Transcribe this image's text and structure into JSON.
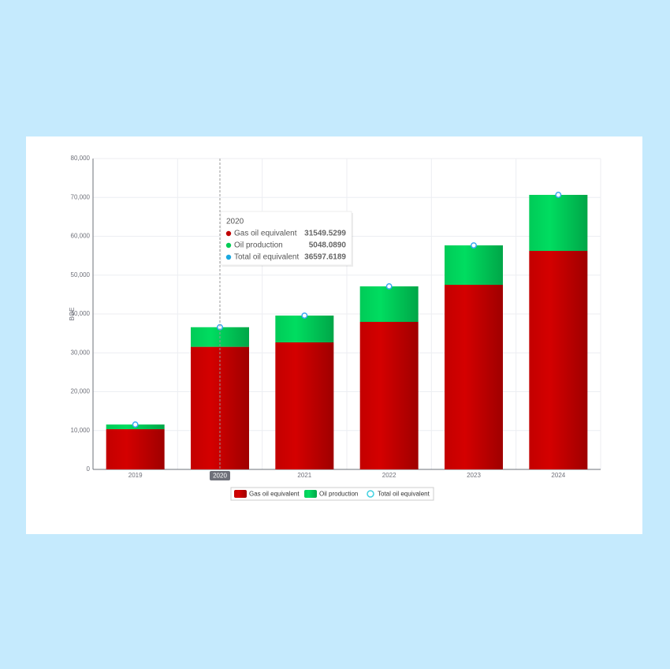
{
  "chart_data": {
    "type": "bar",
    "y_label": "BOE",
    "categories": [
      "2019",
      "2020",
      "2021",
      "2022",
      "2023",
      "2024"
    ],
    "series": [
      {
        "name": "Gas oil equivalent",
        "color": "#d40000",
        "values": [
          10350,
          31549.5299,
          32690,
          37970,
          47510,
          56240
        ]
      },
      {
        "name": "Oil production",
        "color": "#00dd60",
        "values": [
          1200,
          5048.089,
          6900,
          9140,
          10150,
          14420
        ]
      },
      {
        "name": "Total oil equivalent",
        "type": "scatter",
        "color": "#3aa8f0",
        "values": [
          11550,
          36597.6189,
          39590,
          47110,
          57660,
          70660
        ]
      }
    ],
    "ylim": [
      0,
      80000
    ],
    "yticks": [
      {
        "value": 0,
        "label": "0"
      },
      {
        "value": 10000,
        "label": "10,000"
      },
      {
        "value": 20000,
        "label": "20,000"
      },
      {
        "value": 30000,
        "label": "30,000"
      },
      {
        "value": 40000,
        "label": "40,000"
      },
      {
        "value": 50000,
        "label": "50,000"
      },
      {
        "value": 60000,
        "label": "60,000"
      },
      {
        "value": 70000,
        "label": "70,000"
      },
      {
        "value": 80000,
        "label": "80,000"
      }
    ],
    "grid": true,
    "legend": "bottom",
    "tooltip": {
      "category": "2020",
      "labels": [
        "31549.5299",
        "5048.0890",
        "36597.6189"
      ]
    }
  }
}
